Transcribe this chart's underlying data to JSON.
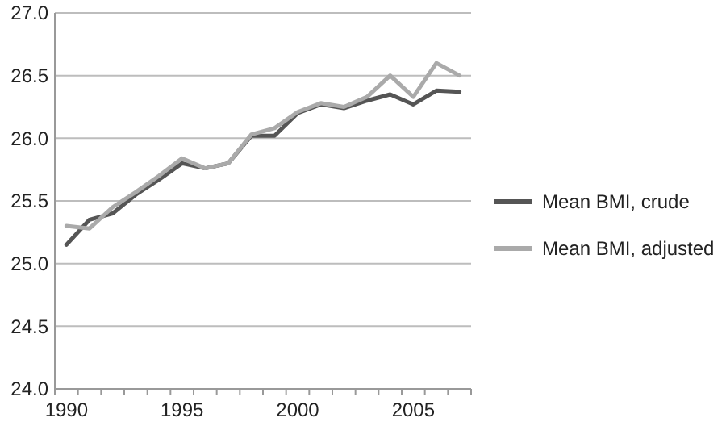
{
  "chart_data": {
    "type": "line",
    "x": [
      1990,
      1991,
      1992,
      1993,
      1994,
      1995,
      1996,
      1997,
      1998,
      1999,
      2000,
      2001,
      2002,
      2003,
      2004,
      2005,
      2006,
      2007
    ],
    "series": [
      {
        "name": "Mean BMI, crude",
        "color": "#555555",
        "values": [
          25.15,
          25.35,
          25.4,
          25.55,
          25.67,
          25.8,
          25.76,
          25.8,
          26.02,
          26.02,
          26.2,
          26.27,
          26.24,
          26.3,
          26.35,
          26.27,
          26.38,
          26.37
        ]
      },
      {
        "name": "Mean BMI, adjusted",
        "color": "#aaaaaa",
        "values": [
          25.3,
          25.28,
          25.45,
          25.57,
          25.7,
          25.84,
          25.76,
          25.8,
          26.03,
          26.08,
          26.21,
          26.28,
          26.25,
          26.33,
          26.5,
          26.33,
          26.6,
          26.5
        ]
      }
    ],
    "xlim": [
      1989.5,
      2007.5
    ],
    "xticks": [
      1990,
      1995,
      2000,
      2005
    ],
    "ylim": [
      24,
      27
    ],
    "yticks": [
      {
        "value": 24,
        "label": "24.0"
      },
      {
        "value": 24.5,
        "label": "24.5"
      },
      {
        "value": 25,
        "label": "25.0"
      },
      {
        "value": 25.5,
        "label": "25.5"
      },
      {
        "value": 26,
        "label": "26.0"
      },
      {
        "value": 26.5,
        "label": "26.5"
      },
      {
        "value": 27,
        "label": "27.0"
      }
    ],
    "grid": "y",
    "legend": "right",
    "marker": "none",
    "line_style": "solid"
  }
}
